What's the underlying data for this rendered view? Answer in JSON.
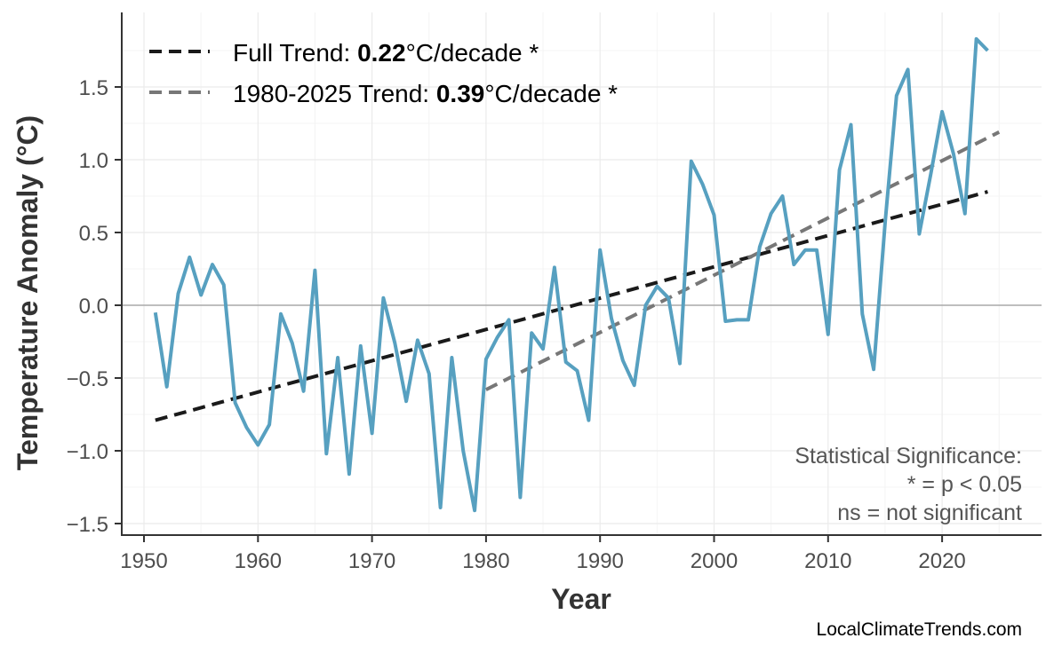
{
  "chart_data": {
    "type": "line",
    "xlabel": "Year",
    "ylabel": "Temperature Anomaly (°C)",
    "xlim": [
      1947,
      2029
    ],
    "ylim": [
      -1.6,
      1.97
    ],
    "xticks": [
      1950,
      1960,
      1970,
      1980,
      1990,
      2000,
      2010,
      2020
    ],
    "yticks": [
      -1.5,
      -1.0,
      -0.5,
      0.0,
      0.5,
      1.0,
      1.5
    ],
    "ytick_labels": [
      "−1.5",
      "−1.0",
      "−0.5",
      "0.0",
      "0.5",
      "1.0",
      "1.5"
    ],
    "grid": true,
    "legend_position": "top-left",
    "colors": {
      "series": "#57a0c0",
      "full_trend": "#1a1a1a",
      "recent_trend": "#777777",
      "zero_line": "#aaaaaa"
    },
    "series": {
      "x": [
        1951,
        1952,
        1953,
        1954,
        1955,
        1956,
        1957,
        1958,
        1959,
        1960,
        1961,
        1962,
        1963,
        1964,
        1965,
        1966,
        1967,
        1968,
        1969,
        1970,
        1971,
        1972,
        1973,
        1974,
        1975,
        1976,
        1977,
        1978,
        1979,
        1980,
        1981,
        1982,
        1983,
        1984,
        1985,
        1986,
        1987,
        1988,
        1989,
        1990,
        1991,
        1992,
        1993,
        1994,
        1995,
        1996,
        1997,
        1998,
        1999,
        2000,
        2001,
        2002,
        2003,
        2004,
        2005,
        2006,
        2007,
        2008,
        2009,
        2010,
        2011,
        2012,
        2013,
        2014,
        2015,
        2016,
        2017,
        2018,
        2019,
        2020,
        2021,
        2022,
        2023,
        2024
      ],
      "y": [
        -0.05,
        -0.56,
        0.08,
        0.33,
        0.07,
        0.28,
        0.14,
        -0.67,
        -0.84,
        -0.96,
        -0.82,
        -0.06,
        -0.26,
        -0.59,
        0.24,
        -1.02,
        -0.36,
        -1.16,
        -0.28,
        -0.88,
        0.05,
        -0.26,
        -0.66,
        -0.24,
        -0.47,
        -1.39,
        -0.36,
        -1.0,
        -1.41,
        -0.37,
        -0.22,
        -0.1,
        -1.32,
        -0.19,
        -0.3,
        0.26,
        -0.39,
        -0.45,
        -0.79,
        0.38,
        -0.09,
        -0.38,
        -0.55,
        0.0,
        0.13,
        0.05,
        -0.4,
        0.99,
        0.83,
        0.62,
        -0.11,
        -0.1,
        -0.1,
        0.4,
        0.63,
        0.75,
        0.28,
        0.38,
        0.38,
        -0.2,
        0.93,
        1.24,
        -0.06,
        -0.44,
        0.57,
        1.44,
        1.62,
        0.49,
        0.9,
        1.33,
        1.04,
        0.63,
        1.83,
        1.75
      ]
    },
    "trends": [
      {
        "label_prefix": "Full Trend: ",
        "value": "0.22",
        "label_suffix": "°C/decade *",
        "x": [
          1951,
          2024
        ],
        "y": [
          -0.79,
          0.78
        ]
      },
      {
        "label_prefix": "1980-2025 Trend: ",
        "value": "0.39",
        "label_suffix": "°C/decade *",
        "x": [
          1980,
          2025
        ],
        "y": [
          -0.58,
          1.19
        ]
      }
    ],
    "annotation": [
      "Statistical Significance:",
      "* = p < 0.05",
      "ns = not significant"
    ]
  },
  "caption": "LocalClimateTrends.com"
}
